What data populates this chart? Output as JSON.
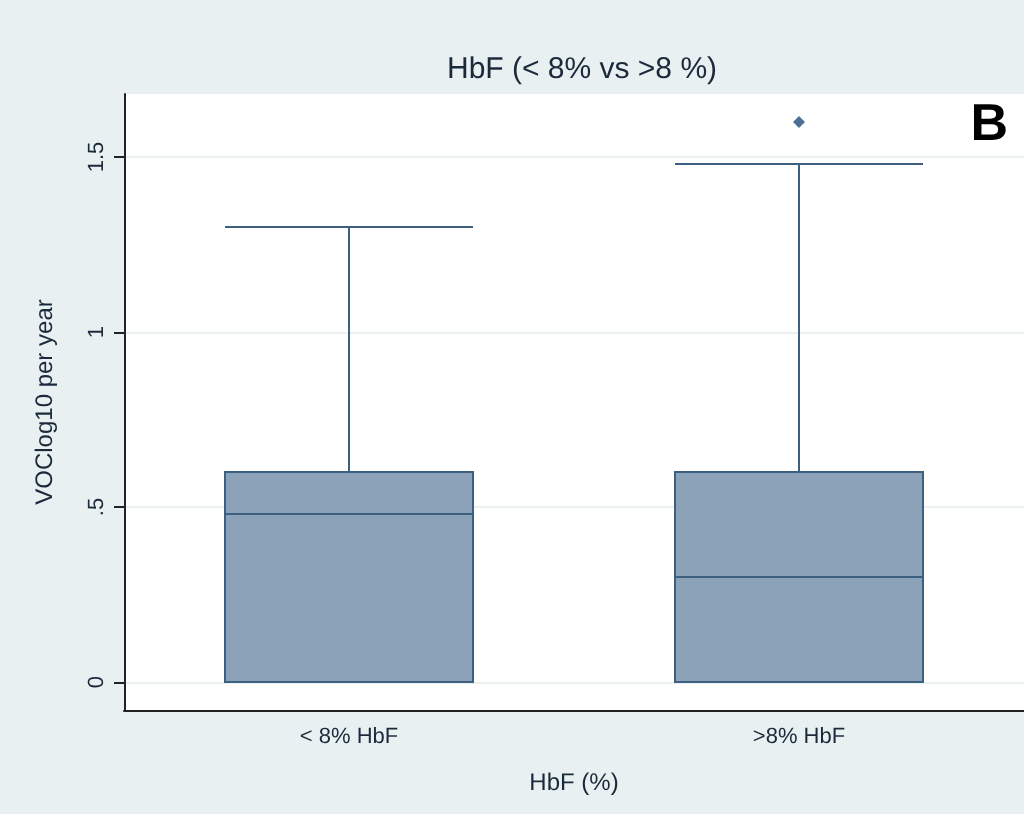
{
  "chart_data": {
    "type": "box",
    "title": "HbF (< 8% vs >8 %)",
    "xlabel": "HbF (%)",
    "ylabel": "VOClog10 per year",
    "annotations": [
      "B"
    ],
    "categories": [
      "< 8% HbF",
      ">8% HbF"
    ],
    "series": [
      {
        "color": "#8ca2b8",
        "boxes": [
          {
            "low": 0,
            "q1": 0,
            "median": 0.48,
            "q3": 0.6,
            "high": 1.3
          },
          {
            "low": 0,
            "q1": 0,
            "median": 0.3,
            "q3": 0.6,
            "high": 1.48,
            "outliers": [
              1.6
            ]
          }
        ]
      }
    ],
    "ylim": [
      -0.08,
      1.68
    ],
    "yticks": [
      0,
      {
        "value": 0.5,
        "label": ".5"
      },
      1,
      1.5
    ],
    "grid": "y"
  }
}
